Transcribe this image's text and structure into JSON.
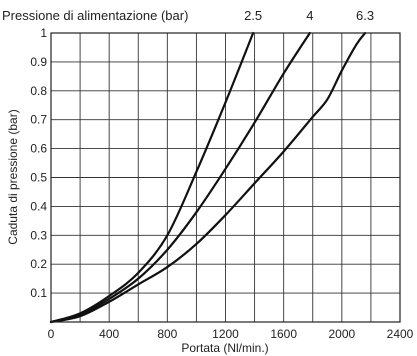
{
  "chart_data": {
    "type": "line",
    "title": "Pressione di alimentazione (bar)",
    "xlabel": "Portata (Nl/min.)",
    "ylabel": "Caduta di pressione (bar)",
    "xlim": [
      0,
      2400
    ],
    "ylim": [
      0,
      1
    ],
    "xticks": [
      0,
      400,
      800,
      1200,
      1600,
      2000,
      2400
    ],
    "yticks": [
      0.1,
      0.2,
      0.3,
      0.4,
      0.5,
      0.6,
      0.7,
      0.8,
      0.9,
      1
    ],
    "xtick_labels": [
      "0",
      "400",
      "800",
      "1200",
      "1600",
      "2000",
      "2400"
    ],
    "ytick_labels": [
      "0.1",
      "0.2",
      "0.3",
      "0.4",
      "0.5",
      "0.6",
      "0.7",
      "0.8",
      "0.9",
      "1"
    ],
    "grid": true,
    "series": [
      {
        "name": "2.5",
        "points": [
          [
            0,
            0
          ],
          [
            200,
            0.03
          ],
          [
            400,
            0.09
          ],
          [
            600,
            0.17
          ],
          [
            800,
            0.3
          ],
          [
            1000,
            0.52
          ],
          [
            1200,
            0.76
          ],
          [
            1390,
            1.0
          ]
        ]
      },
      {
        "name": "4",
        "points": [
          [
            0,
            0
          ],
          [
            200,
            0.025
          ],
          [
            400,
            0.08
          ],
          [
            600,
            0.15
          ],
          [
            800,
            0.25
          ],
          [
            1000,
            0.38
          ],
          [
            1200,
            0.53
          ],
          [
            1400,
            0.69
          ],
          [
            1600,
            0.86
          ],
          [
            1780,
            1.0
          ]
        ]
      },
      {
        "name": "6.3",
        "points": [
          [
            0,
            0
          ],
          [
            200,
            0.02
          ],
          [
            400,
            0.07
          ],
          [
            600,
            0.13
          ],
          [
            800,
            0.19
          ],
          [
            1000,
            0.27
          ],
          [
            1200,
            0.37
          ],
          [
            1400,
            0.48
          ],
          [
            1600,
            0.59
          ],
          [
            1800,
            0.71
          ],
          [
            1900,
            0.77
          ],
          [
            2000,
            0.87
          ],
          [
            2100,
            0.96
          ],
          [
            2160,
            1.0
          ]
        ]
      }
    ]
  }
}
